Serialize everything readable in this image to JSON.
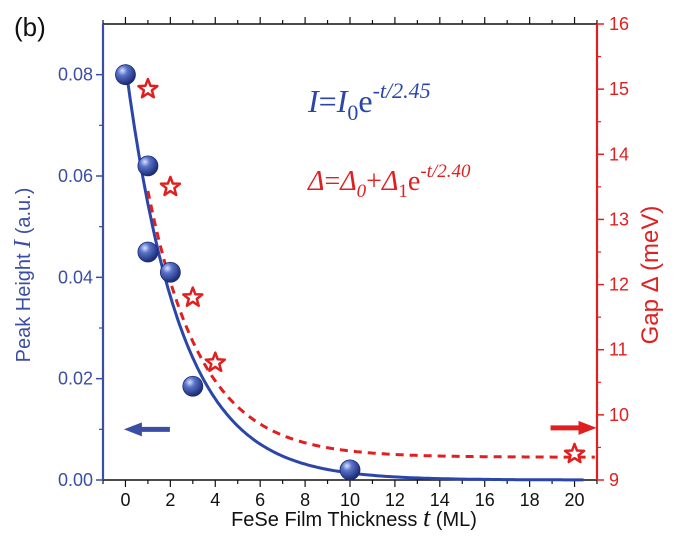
{
  "chart_data": {
    "type": "scatter",
    "panel_label": "(b)",
    "xlabel": {
      "text": "FeSe Film Thickness",
      "symbol": "t",
      "unit": "(ML)"
    },
    "ylabel_left": {
      "text": "Peak Height",
      "symbol": "I",
      "unit": "(a.u.)"
    },
    "ylabel_right": {
      "text": "Gap Δ (meV)"
    },
    "xlim": [
      -1,
      21
    ],
    "ylim_left": [
      0,
      0.09
    ],
    "ylim_right": [
      9,
      16
    ],
    "x_ticks": [
      0,
      2,
      4,
      6,
      8,
      10,
      12,
      14,
      16,
      18,
      20
    ],
    "y_ticks_left": [
      "0.00",
      "0.02",
      "0.04",
      "0.06",
      "0.08"
    ],
    "y_ticks_right": [
      9,
      10,
      11,
      12,
      13,
      14,
      15,
      16
    ],
    "series": [
      {
        "axis": "left",
        "marker": "sphere",
        "color": "#2b46a8",
        "x": [
          0,
          1,
          1,
          2,
          3,
          10
        ],
        "y": [
          0.08,
          0.062,
          0.045,
          0.041,
          0.0185,
          0.002
        ]
      },
      {
        "axis": "right",
        "marker": "star",
        "color": "#e02020",
        "x": [
          1,
          2,
          3,
          4,
          20
        ],
        "y": [
          15.0,
          13.5,
          11.8,
          10.8,
          9.4
        ]
      }
    ],
    "fits": [
      {
        "axis": "left",
        "style": "solid",
        "color": "#2b46a8",
        "I0": 0.082,
        "decay": 2.45
      },
      {
        "axis": "right",
        "style": "dashed",
        "color": "#e02020",
        "D0": 9.35,
        "D1": 6.2,
        "decay": 2.4
      }
    ],
    "annotations": {
      "eq1": {
        "lhs": "I",
        "sub": "0",
        "base": "e",
        "exp": "-t/2.45"
      },
      "eq2": {
        "lhs": "Δ",
        "t1": "Δ",
        "t1sub": "0",
        "t2": "Δ",
        "t2sub": "1",
        "base": "e",
        "exp": "-t/2.40"
      },
      "left_arrow": {
        "x": 1,
        "y": 0.01,
        "points": "left"
      },
      "right_arrow": {
        "x": 20,
        "y": 9.8,
        "points": "right"
      }
    },
    "grid": false,
    "legend": "none"
  }
}
